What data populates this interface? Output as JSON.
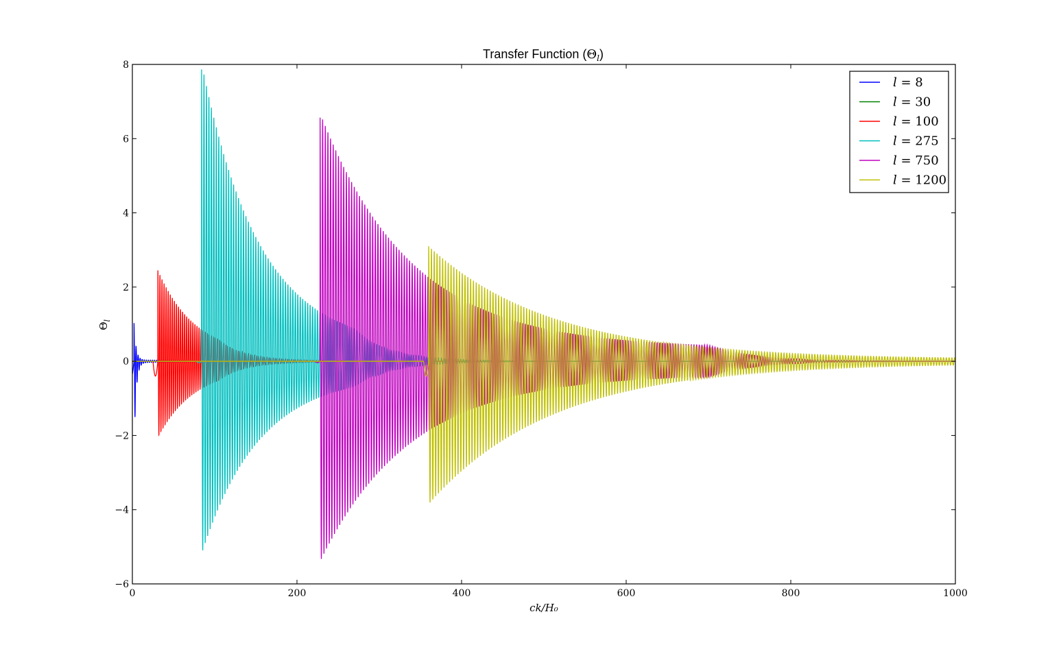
{
  "chart_data": {
    "type": "line",
    "title": "Transfer Function (Θ_l)",
    "title_parts": {
      "prefix": "Transfer Function (",
      "symbol": "Θ",
      "subscript": "l",
      "suffix": ")"
    },
    "xlabel": "ck/H₀",
    "ylabel_parts": {
      "symbol": "Θ",
      "subscript": "l"
    },
    "xlim": [
      0,
      1000
    ],
    "ylim": [
      -6,
      8
    ],
    "xticks": [
      0,
      200,
      400,
      600,
      800,
      1000
    ],
    "yticks": [
      -6,
      -4,
      -2,
      0,
      2,
      4,
      6,
      8
    ],
    "ytick_labels": [
      "−6",
      "−4",
      "−2",
      "0",
      "2",
      "4",
      "6",
      "8"
    ],
    "grid": false,
    "legend_position": "top-right",
    "series": [
      {
        "name": "l = 8",
        "label_parts": {
          "var": "l",
          "value": "8"
        },
        "color": "#0000ff",
        "onset": 2,
        "first_max": 1.0,
        "first_min": -2.4,
        "decay": 2.5,
        "tail": 0.03,
        "period": 2.5,
        "end": 30
      },
      {
        "name": "l = 30",
        "label_parts": {
          "var": "l",
          "value": "30"
        },
        "color": "#008000",
        "onset": 0,
        "first_max": 0,
        "first_min": 0,
        "decay": 1,
        "tail": 0,
        "period": 3,
        "end": 30
      },
      {
        "name": "l = 100",
        "label_parts": {
          "var": "l",
          "value": "100"
        },
        "color": "#ff0000",
        "onset": 31,
        "first_max": 2.3,
        "first_min": -1.9,
        "decay": 45,
        "tail": 0.15,
        "period": 2.5,
        "end": 105
      },
      {
        "name": "l = 275",
        "label_parts": {
          "var": "l",
          "value": "275"
        },
        "color": "#00bfbf",
        "onset": 84,
        "first_max": 7.7,
        "first_min": -4.85,
        "decay": 70,
        "tail": 0.35,
        "period": 3.0,
        "end": 270
      },
      {
        "name": "l = 750",
        "label_parts": {
          "var": "l",
          "value": "750"
        },
        "color": "#bf00bf",
        "onset": 228,
        "first_max": 6.35,
        "first_min": -5.05,
        "decay": 110,
        "tail": 0.35,
        "period": 3.2,
        "end": 700
      },
      {
        "name": "l = 1200",
        "label_parts": {
          "var": "l",
          "value": "1200"
        },
        "color": "#bfbf00",
        "onset": 360,
        "first_max": 3.05,
        "first_min": -3.8,
        "decay": 150,
        "tail": 0.05,
        "period": 3.4,
        "end": 1000
      }
    ]
  }
}
